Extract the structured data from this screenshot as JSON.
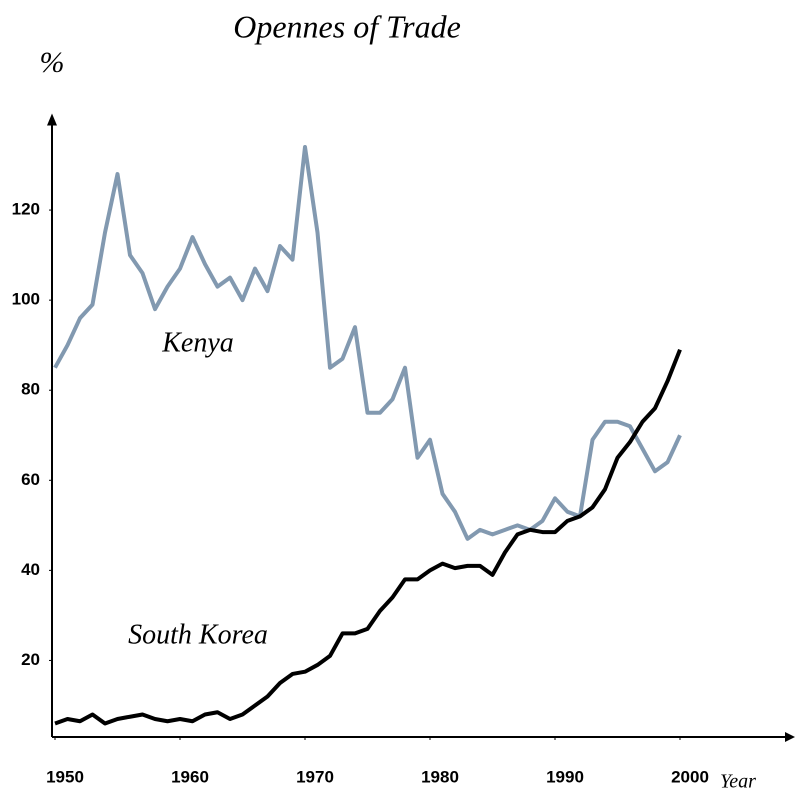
{
  "chart_data": {
    "type": "line",
    "title": "Opennes of Trade",
    "y_label": "%",
    "x_label": "Year",
    "x": [
      1950,
      1951,
      1952,
      1953,
      1954,
      1955,
      1956,
      1957,
      1958,
      1959,
      1960,
      1961,
      1962,
      1963,
      1964,
      1965,
      1966,
      1967,
      1968,
      1969,
      1970,
      1971,
      1972,
      1973,
      1974,
      1975,
      1976,
      1977,
      1978,
      1979,
      1980,
      1981,
      1982,
      1983,
      1984,
      1985,
      1986,
      1987,
      1988,
      1989,
      1990,
      1991,
      1992,
      1993,
      1994,
      1995,
      1996,
      1997,
      1998,
      1999,
      2000
    ],
    "series": [
      {
        "name": "Kenya",
        "color": "#8299b0",
        "values": [
          85,
          90,
          96,
          99,
          115,
          128,
          110,
          106,
          98,
          103,
          107,
          114,
          108,
          103,
          105,
          100,
          107,
          102,
          112,
          109,
          134,
          115,
          85,
          87,
          94,
          75,
          75,
          78,
          85,
          65,
          69,
          57,
          53,
          47,
          49,
          48,
          49,
          50,
          49,
          51,
          56,
          53,
          52,
          69,
          73,
          73,
          72,
          67,
          62,
          64,
          70
        ]
      },
      {
        "name": "South Korea",
        "color": "#000000",
        "values": [
          6,
          7,
          6.5,
          8,
          6,
          7,
          7.5,
          8,
          7,
          6.5,
          7,
          6.5,
          8,
          8.5,
          7,
          8,
          10,
          12,
          15,
          17,
          17.5,
          19,
          21,
          26,
          26,
          27,
          31,
          34,
          38,
          38,
          40,
          41.5,
          40.5,
          41,
          41,
          39,
          44,
          48,
          49,
          48.5,
          48.5,
          51,
          52,
          54,
          58,
          65,
          68.5,
          73,
          76,
          82,
          89
        ]
      }
    ],
    "xlim": [
      1949.76,
      2009.2
    ],
    "xticks": [
      1950,
      1960,
      1970,
      1980,
      1990,
      2000
    ],
    "ylim": [
      3,
      141
    ],
    "yticks": [
      20,
      40,
      60,
      80,
      100,
      120
    ]
  }
}
